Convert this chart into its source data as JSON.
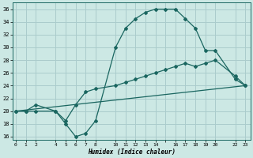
{
  "xlabel": "Humidex (Indice chaleur)",
  "bg_color": "#cce8e4",
  "grid_color": "#aacccc",
  "line_color": "#1a6660",
  "series1_x": [
    0,
    1,
    2,
    4,
    5,
    6,
    7,
    8,
    10,
    11,
    12,
    13,
    14,
    15,
    16,
    17,
    18,
    19,
    20,
    22,
    23
  ],
  "series1_y": [
    20,
    20,
    20,
    20,
    18,
    16,
    16.5,
    18.5,
    30,
    33,
    34.5,
    35.5,
    36,
    36,
    36,
    34.5,
    33,
    29.5,
    29.5,
    25,
    24
  ],
  "series2_x": [
    0,
    1,
    2,
    4,
    5,
    6,
    7,
    8,
    10,
    11,
    12,
    13,
    14,
    15,
    16,
    17,
    18,
    19,
    20,
    22,
    23
  ],
  "series2_y": [
    20,
    20,
    21,
    20,
    18.5,
    21,
    23,
    23.5,
    24,
    24.5,
    25,
    25.5,
    26,
    26.5,
    27,
    27.5,
    27,
    27.5,
    28,
    25.5,
    24
  ],
  "series3_x": [
    0,
    23
  ],
  "series3_y": [
    20,
    24
  ],
  "xtick_positions": [
    0,
    1,
    2,
    4,
    5,
    6,
    7,
    8,
    10,
    11,
    12,
    13,
    14,
    15,
    16,
    17,
    18,
    19,
    20,
    22,
    23
  ],
  "xtick_labels": [
    "0",
    "1",
    "2",
    "4",
    "5",
    "6",
    "7",
    "8",
    "10",
    "11",
    "12",
    "13",
    "14",
    "",
    "16",
    "17",
    "18",
    "19",
    "20",
    "22",
    "23"
  ],
  "xlim": [
    -0.3,
    23.5
  ],
  "ylim": [
    15.5,
    37
  ],
  "yticks": [
    16,
    18,
    20,
    22,
    24,
    26,
    28,
    30,
    32,
    34,
    36
  ]
}
